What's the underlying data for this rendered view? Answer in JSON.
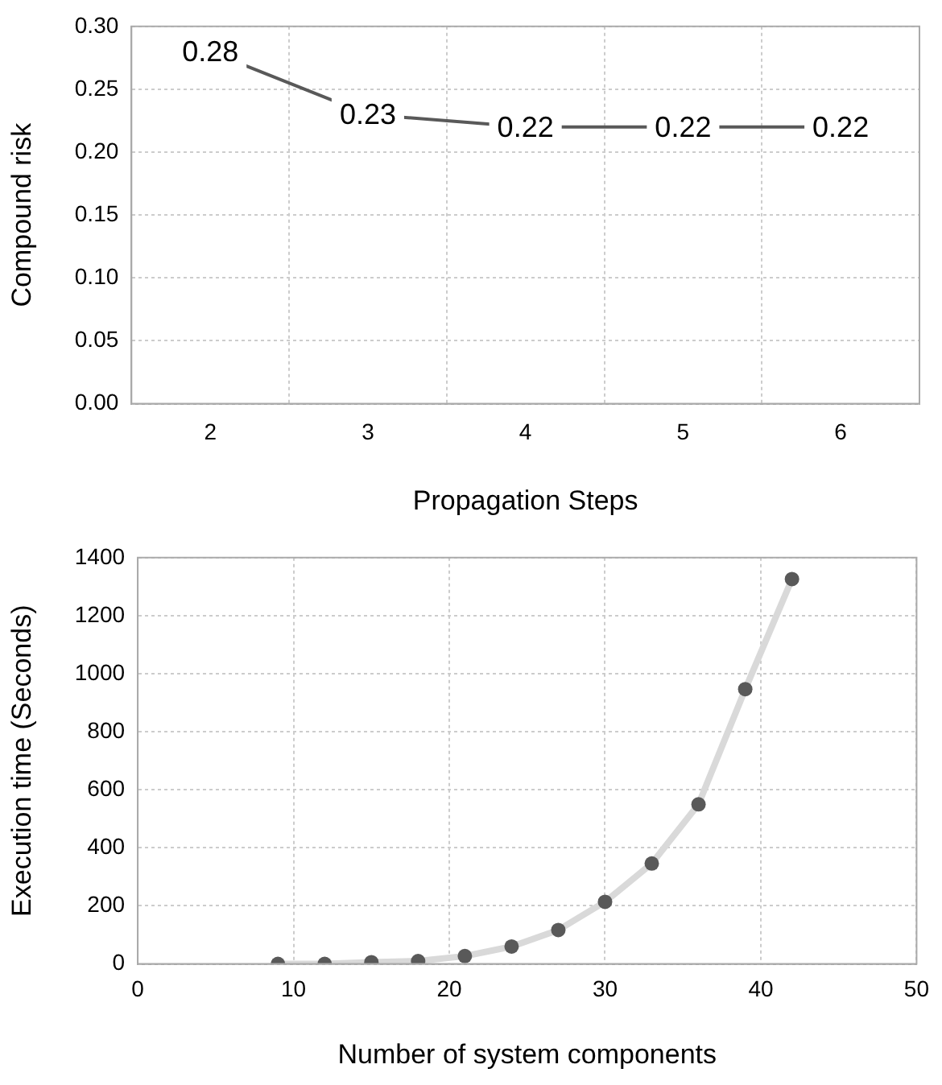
{
  "chart_data": [
    {
      "type": "line",
      "xlabel": "Propagation Steps",
      "ylabel": "Compound risk",
      "categories": [
        "2",
        "3",
        "4",
        "5",
        "6"
      ],
      "values": [
        0.28,
        0.23,
        0.22,
        0.22,
        0.22
      ],
      "color": "#595959",
      "data_labels": true,
      "grid": true,
      "legend": false,
      "ylim": [
        0,
        0.3
      ],
      "yticks": [
        {
          "value": 0,
          "label": "0.00"
        },
        {
          "value": 0.05,
          "label": "0.05"
        },
        {
          "value": 0.1,
          "label": "0.10"
        },
        {
          "value": 0.15,
          "label": "0.15"
        },
        {
          "value": 0.2,
          "label": "0.20"
        },
        {
          "value": 0.25,
          "label": "0.25"
        },
        {
          "value": 0.3,
          "label": "0.30"
        }
      ]
    },
    {
      "type": "line",
      "xlabel": "Number of system components",
      "ylabel": "Execution time (Seconds)",
      "grid": true,
      "legend": false,
      "x": [
        9,
        12,
        15,
        18,
        21,
        24,
        27,
        30,
        33,
        36,
        39,
        42
      ],
      "series": [
        {
          "type": "line",
          "marker": "none",
          "color": "#d9d9d9",
          "values": [
            0,
            0,
            6,
            10,
            27,
            60,
            117,
            214,
            346,
            550,
            947,
            1326
          ]
        },
        {
          "type": "scatter",
          "marker": "circle",
          "color": "#595959",
          "values": [
            0,
            0,
            6,
            10,
            27,
            60,
            117,
            214,
            346,
            550,
            947,
            1326
          ]
        }
      ],
      "xlim": [
        0,
        50
      ],
      "xticks": [
        0,
        10,
        20,
        30,
        40,
        50
      ],
      "ylim": [
        0,
        1400
      ],
      "yticks": [
        0,
        200,
        400,
        600,
        800,
        1000,
        1200,
        1400
      ]
    }
  ]
}
